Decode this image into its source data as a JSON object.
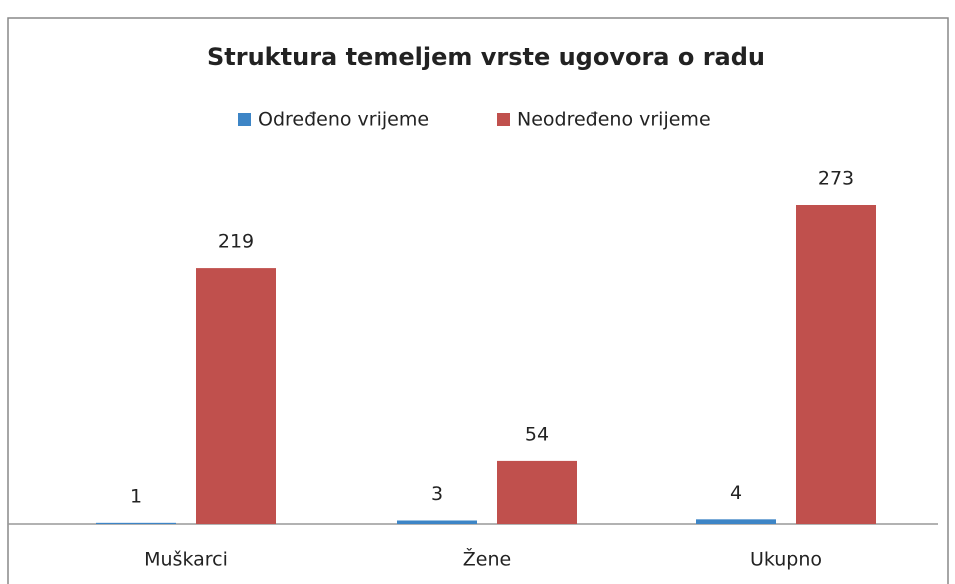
{
  "chart_data": {
    "type": "bar",
    "title": "Struktura temeljem vrste ugovora o radu",
    "categories": [
      "Muškarci",
      "Žene",
      "Ukupno"
    ],
    "series": [
      {
        "name": "Određeno vrijeme",
        "color": "#3d85c6",
        "values": [
          1,
          3,
          4
        ]
      },
      {
        "name": "Neodređeno vrijeme",
        "color": "#c0504d",
        "values": [
          219,
          54,
          273
        ]
      }
    ],
    "legend": "top"
  }
}
